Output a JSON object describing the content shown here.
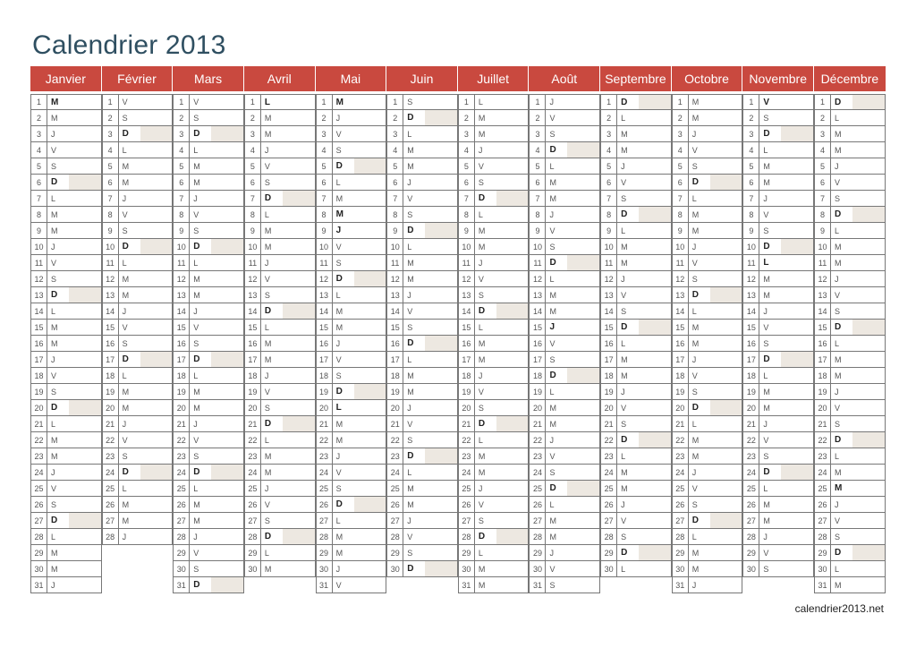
{
  "title": "Calendrier 2013",
  "footer": "calendrier2013.net",
  "colors": {
    "header_bg": "#c9493f",
    "sunday_bg": "#ede8e1",
    "title": "#2f4f61"
  },
  "weekday_letters": [
    "D",
    "L",
    "M",
    "M",
    "J",
    "V",
    "S"
  ],
  "months": [
    {
      "name": "Janvier",
      "days": 31,
      "start_weekday": 2,
      "holidays": [
        1
      ]
    },
    {
      "name": "Février",
      "days": 28,
      "start_weekday": 5,
      "holidays": []
    },
    {
      "name": "Mars",
      "days": 31,
      "start_weekday": 5,
      "holidays": []
    },
    {
      "name": "Avril",
      "days": 30,
      "start_weekday": 1,
      "holidays": [
        1
      ]
    },
    {
      "name": "Mai",
      "days": 31,
      "start_weekday": 3,
      "holidays": [
        1,
        8,
        9,
        20
      ]
    },
    {
      "name": "Juin",
      "days": 30,
      "start_weekday": 6,
      "holidays": []
    },
    {
      "name": "Juillet",
      "days": 31,
      "start_weekday": 1,
      "holidays": [
        14
      ]
    },
    {
      "name": "Août",
      "days": 31,
      "start_weekday": 4,
      "holidays": [
        15
      ]
    },
    {
      "name": "Septembre",
      "days": 30,
      "start_weekday": 0,
      "holidays": []
    },
    {
      "name": "Octobre",
      "days": 31,
      "start_weekday": 2,
      "holidays": []
    },
    {
      "name": "Novembre",
      "days": 30,
      "start_weekday": 5,
      "holidays": [
        1,
        11
      ]
    },
    {
      "name": "Décembre",
      "days": 31,
      "start_weekday": 0,
      "holidays": [
        25
      ]
    }
  ]
}
